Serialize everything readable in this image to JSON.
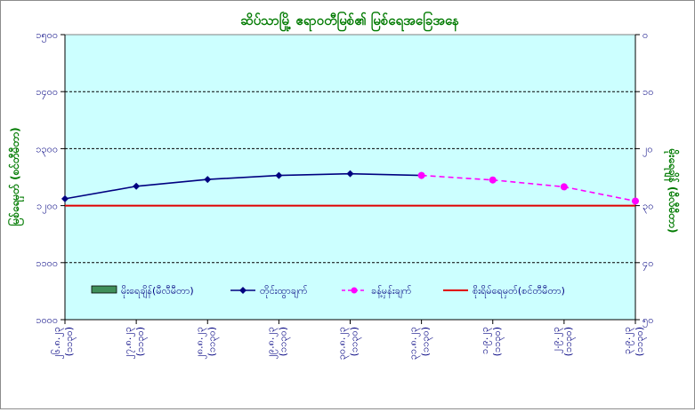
{
  "chart_data": {
    "type": "line",
    "title": "ဆိပ်သာမြို့ ဧရာဝတီမြစ်၏ မြစ်ရေအခြေအနေ",
    "ylabel": "မြစ်ရေမှတ် (စင်တီမီတာ)",
    "y2label": "မိုးရေချိန် (မီလီမီတာ)",
    "ylim": [
      1000,
      1500
    ],
    "y_ticks": [
      "၁၅၀၀",
      "၁၄၀၀",
      "၁၃၀၀",
      "၁၂၀၀",
      "၁၁၀၀",
      "၁၀၀၀"
    ],
    "y2lim": [
      0,
      50
    ],
    "y2_ticks": [
      "၀",
      "၁၀",
      "၂၀",
      "၃၀",
      "၄၀",
      "၅၀"
    ],
    "categories": [
      {
        "line1": "၂၆.၈.၂၃",
        "line2": "(၁၁၃၀)"
      },
      {
        "line1": "၂၇.၈.၂၃",
        "line2": "(၁၁၃၀)"
      },
      {
        "line1": "၂၈.၈.၂၃",
        "line2": "(၁၁၃၀)"
      },
      {
        "line1": "၂၉.၈.၂၃",
        "line2": "(၁၁၃၀)"
      },
      {
        "line1": "၃၀.၈.၂၃",
        "line2": "(၁၁၃၀)"
      },
      {
        "line1": "၃၁.၈.၂၃",
        "line2": "(၁၁၃၀)"
      },
      {
        "line1": "၁.၉.၂၃",
        "line2": "(၁၁၃၀)"
      },
      {
        "line1": "၂.၉.၂၃",
        "line2": "(၁၁၃၀)"
      },
      {
        "line1": "၃.၉.၂၃",
        "line2": "(၁၁၃၀)"
      }
    ],
    "series": [
      {
        "name": "မိုးရေချိန်(မီလီမီတာ)",
        "kind": "bar",
        "axis": "right",
        "color": "#3f8f5a",
        "values": [
          0,
          0,
          0,
          0,
          0,
          0,
          0,
          0,
          0
        ]
      },
      {
        "name": "တိုင်းထွာချက်",
        "kind": "line",
        "axis": "left",
        "color": "#000080",
        "marker": "diamond",
        "values": [
          1212,
          1234,
          1246,
          1253,
          1256,
          1253,
          null,
          null,
          null
        ]
      },
      {
        "name": "ခန့်မှန်းချက်",
        "kind": "line",
        "axis": "left",
        "color": "#ff00ff",
        "dashed": true,
        "marker": "circle",
        "values": [
          null,
          null,
          null,
          null,
          null,
          1253,
          1245,
          1233,
          1208
        ]
      },
      {
        "name": "စိုးရိမ်ရေမှတ်(စင်တီမီတာ)",
        "kind": "hline",
        "axis": "left",
        "color": "#e00000",
        "value": 1200
      }
    ],
    "grid": true,
    "legend_position": "bottom-inside",
    "colors": {
      "plot_bg": "#ccffff",
      "title": "#007a00",
      "axis_text": "#000080",
      "axis_label": "#007a00"
    }
  }
}
